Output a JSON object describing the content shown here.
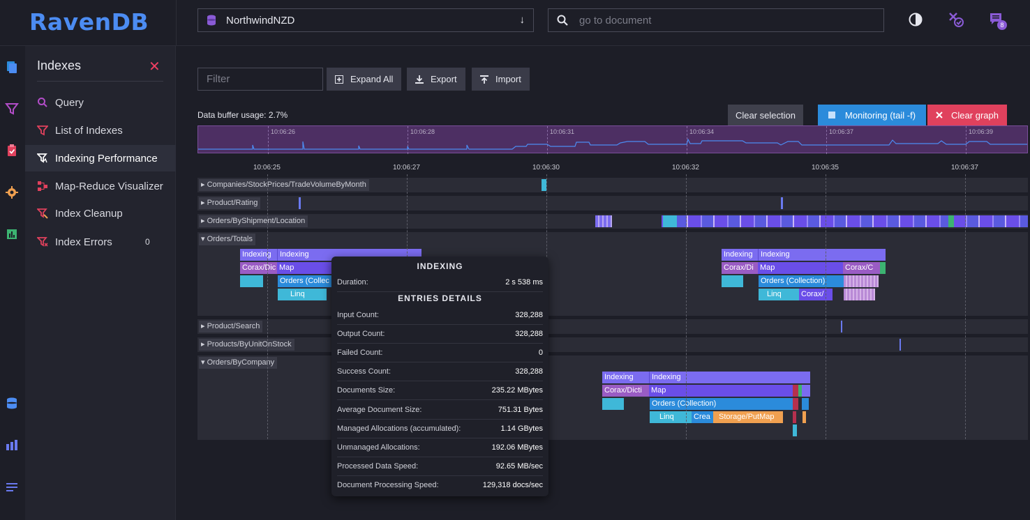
{
  "app": {
    "logo": "RavenDB"
  },
  "header": {
    "database": "NorthwindNZD",
    "search_placeholder": "go to document",
    "notification_count": "8"
  },
  "submenu": {
    "title": "Indexes",
    "items": [
      {
        "label": "Query",
        "icon": "search-icon"
      },
      {
        "label": "List of Indexes",
        "icon": "filter-icon"
      },
      {
        "label": "Indexing Performance",
        "icon": "performance-icon"
      },
      {
        "label": "Map-Reduce Visualizer",
        "icon": "map-reduce-icon"
      },
      {
        "label": "Index Cleanup",
        "icon": "cleanup-icon"
      },
      {
        "label": "Index Errors",
        "icon": "errors-icon",
        "count": "0"
      }
    ]
  },
  "toolbar": {
    "filter_placeholder": "Filter",
    "expand_all": "Expand All",
    "export": "Export",
    "import": "Import"
  },
  "buffer_usage": "Data buffer usage: 2.7%",
  "actions": {
    "clear_selection": "Clear selection",
    "monitoring": "Monitoring (tail -f)",
    "clear_graph": "Clear graph"
  },
  "overview_ticks": [
    "10:06:26",
    "10:06:28",
    "10:06:31",
    "10:06:34",
    "10:06:37",
    "10:06:39"
  ],
  "axis_ticks": [
    "10:06:25",
    "10:06:27",
    "10:06:30",
    "10:06:32",
    "10:06:35",
    "10:06:37"
  ],
  "tracks": [
    {
      "name": "Companies/StockPrices/TradeVolumeByMonth",
      "expanded": false
    },
    {
      "name": "Product/Rating",
      "expanded": false
    },
    {
      "name": "Orders/ByShipment/Location",
      "expanded": false
    },
    {
      "name": "Orders/Totals",
      "expanded": true
    },
    {
      "name": "Product/Search",
      "expanded": false
    },
    {
      "name": "Products/ByUnitOnStock",
      "expanded": false
    },
    {
      "name": "Orders/ByCompany",
      "expanded": true
    }
  ],
  "bars": {
    "indexing": "Indexing",
    "corax_dic": "Corax/Dic",
    "map": "Map",
    "orders_collection": "Orders (Collection)",
    "orders_collec": "Orders (Collec",
    "linq": "Linq",
    "corax_di": "Corax/Di",
    "corax_c": "Corax/C",
    "corax_short": "Corax/",
    "corax_dicti": "Corax/Dicti",
    "crea": "Crea",
    "storage_putmap": "Storage/PutMap"
  },
  "tooltip": {
    "title": "INDEXING",
    "duration_label": "Duration:",
    "duration": "2 s 538 ms",
    "section": "ENTRIES DETAILS",
    "rows": [
      {
        "label": "Input Count:",
        "value": "328,288"
      },
      {
        "label": "Output Count:",
        "value": "328,288"
      },
      {
        "label": "Failed Count:",
        "value": "0"
      },
      {
        "label": "Success Count:",
        "value": "328,288"
      },
      {
        "label": "Documents Size:",
        "value": "235.22 MBytes"
      },
      {
        "label": "Average Document Size:",
        "value": "751.31 Bytes"
      },
      {
        "label": "Managed Allocations (accumulated):",
        "value": "1.14 GBytes"
      },
      {
        "label": "Unmanaged Allocations:",
        "value": "192.06 MBytes"
      },
      {
        "label": "Processed Data Speed:",
        "value": "92.65 MB/sec"
      },
      {
        "label": "Document Processing Speed:",
        "value": "129,318 docs/sec"
      }
    ]
  },
  "colors": {
    "accent": "#4c8cf2",
    "indexing": "#7b6cf0",
    "map": "#6a4ee8",
    "collection": "#2b8bdb",
    "linq": "#3fb8d8",
    "corax": "#9a5cc4",
    "storage": "#f0a050",
    "danger": "#e0415d"
  }
}
